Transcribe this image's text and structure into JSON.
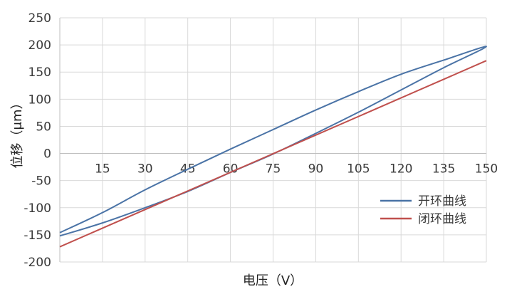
{
  "chart_data": {
    "type": "line",
    "xlabel": "电压（V）",
    "ylabel": "位移（μm）",
    "xlim": [
      0,
      150
    ],
    "ylim": [
      -200,
      250
    ],
    "x_ticks": [
      15,
      30,
      45,
      60,
      75,
      90,
      105,
      120,
      135,
      150
    ],
    "y_ticks": [
      -200,
      -150,
      -100,
      -50,
      0,
      50,
      100,
      150,
      200,
      250
    ],
    "grid": true,
    "legend_position": "bottom-right",
    "series": [
      {
        "name": "开环曲线",
        "color": "#4a73a6",
        "x": [
          0,
          15,
          30,
          45,
          60,
          75,
          90,
          105,
          120,
          135,
          150,
          135,
          120,
          105,
          90,
          75,
          60,
          45,
          30,
          15,
          0
        ],
        "y": [
          -146,
          -109,
          -67,
          -29,
          8,
          44,
          80,
          114,
          146,
          172,
          197,
          158,
          117,
          76,
          37,
          -1,
          -35,
          -70,
          -100,
          -128,
          -152
        ]
      },
      {
        "name": "闭环曲线",
        "color": "#c0504d",
        "x": [
          0,
          150
        ],
        "y": [
          -172,
          171
        ]
      }
    ]
  }
}
